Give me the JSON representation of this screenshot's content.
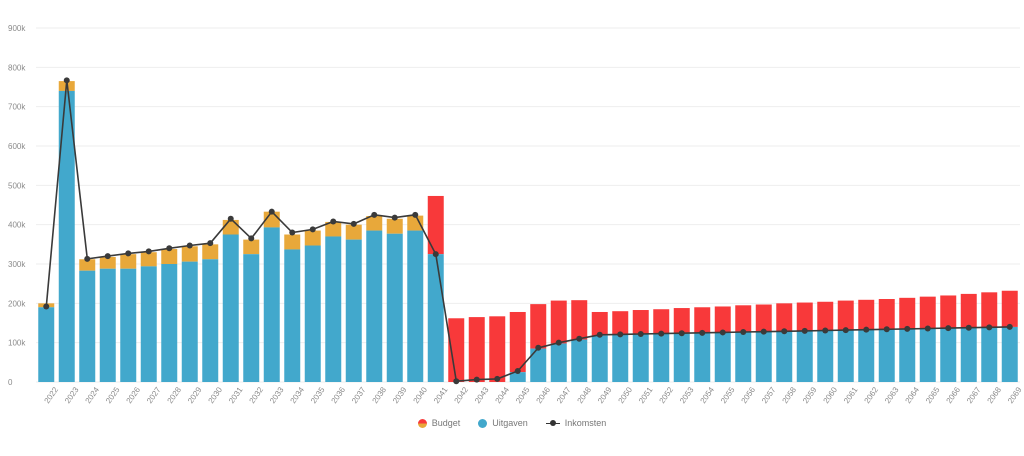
{
  "colors": {
    "budget_over": "#f8393a",
    "budget_under": "#e8a83a",
    "uitgaven": "#42a8cc",
    "inkomsten": "#3a3a3a"
  },
  "chart_data": {
    "type": "bar",
    "title": "",
    "xlabel": "",
    "ylabel": "",
    "ylim": [
      0,
      900000
    ],
    "yticks": [
      0,
      100000,
      200000,
      300000,
      400000,
      500000,
      600000,
      700000,
      800000,
      900000
    ],
    "ytick_labels": [
      "0",
      "100k",
      "200k",
      "300k",
      "400k",
      "500k",
      "600k",
      "700k",
      "800k",
      "900k"
    ],
    "grid": true,
    "legend_position": "bottom",
    "categories": [
      "2022",
      "2023",
      "2024",
      "2025",
      "2026",
      "2027",
      "2028",
      "2029",
      "2030",
      "2031",
      "2032",
      "2033",
      "2034",
      "2035",
      "2036",
      "2037",
      "2038",
      "2039",
      "2040",
      "2041",
      "2042",
      "2043",
      "2044",
      "2045",
      "2046",
      "2047",
      "2048",
      "2049",
      "2050",
      "2051",
      "2052",
      "2053",
      "2054",
      "2055",
      "2056",
      "2057",
      "2058",
      "2059",
      "2060",
      "2061",
      "2062",
      "2063",
      "2064",
      "2065",
      "2066",
      "2067",
      "2068",
      "2069"
    ],
    "series": [
      {
        "name": "Budget",
        "type": "bar-stack-top",
        "values": [
          200000,
          765000,
          312000,
          318000,
          325000,
          330000,
          338000,
          345000,
          350000,
          412000,
          362000,
          433000,
          375000,
          385000,
          407000,
          400000,
          422000,
          415000,
          423000,
          473000,
          162000,
          165000,
          167000,
          178000,
          198000,
          207000,
          208000,
          178000,
          180000,
          183000,
          185000,
          188000,
          190000,
          192000,
          195000,
          197000,
          200000,
          202000,
          204000,
          207000,
          209000,
          211000,
          214000,
          217000,
          220000,
          224000,
          228000,
          232000
        ]
      },
      {
        "name": "Uitgaven",
        "type": "bar",
        "values": [
          190000,
          740000,
          283000,
          288000,
          288000,
          294000,
          300000,
          306000,
          312000,
          375000,
          325000,
          393000,
          337000,
          347000,
          370000,
          362000,
          385000,
          377000,
          385000,
          325000,
          0,
          0,
          0,
          25000,
          85000,
          98000,
          108000,
          118000,
          120000,
          121000,
          122000,
          123000,
          124000,
          125000,
          126000,
          127000,
          128000,
          129000,
          130000,
          131000,
          132000,
          133000,
          134000,
          135000,
          136000,
          137000,
          138000,
          140000
        ]
      },
      {
        "name": "Inkomsten",
        "type": "line",
        "values": [
          192000,
          767000,
          313000,
          320000,
          327000,
          332000,
          340000,
          347000,
          353000,
          415000,
          365000,
          433000,
          380000,
          388000,
          408000,
          402000,
          425000,
          418000,
          425000,
          325000,
          2000,
          6000,
          8000,
          28000,
          87000,
          100000,
          110000,
          120000,
          121000,
          122000,
          123000,
          124000,
          125000,
          126000,
          127000,
          128000,
          129000,
          130000,
          131000,
          132000,
          133000,
          134000,
          135000,
          136000,
          137000,
          138000,
          139000,
          140000
        ]
      }
    ]
  },
  "legend": {
    "budget": "Budget",
    "uitgaven": "Uitgaven",
    "inkomsten": "Inkomsten"
  }
}
